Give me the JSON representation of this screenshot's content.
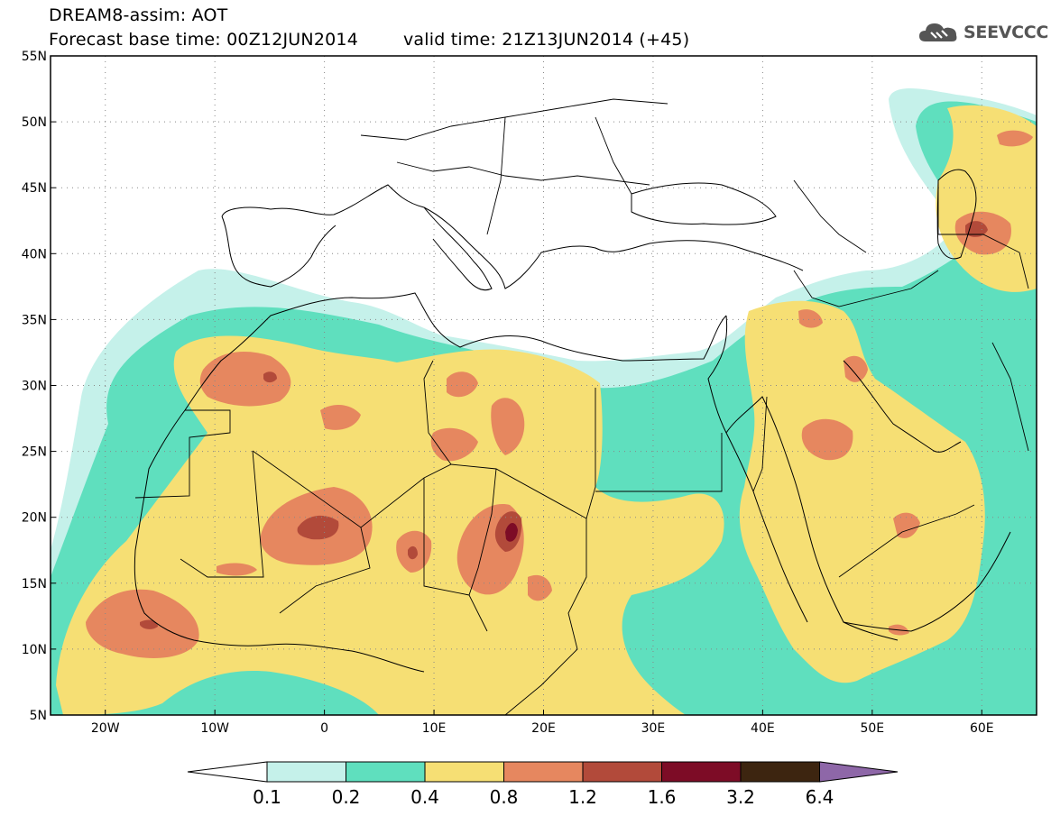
{
  "title": {
    "line1": "DREAM8-assim: AOT",
    "base_time_label": "Forecast base time: 00Z12JUN2014",
    "valid_time_label": "valid time: 21Z13JUN2014 (+45)"
  },
  "logo": {
    "text": "SEEVCCC",
    "icon": "cloud-icon"
  },
  "axes": {
    "lat_labels": [
      "55N",
      "50N",
      "45N",
      "40N",
      "35N",
      "30N",
      "25N",
      "20N",
      "15N",
      "10N",
      "5N"
    ],
    "lon_labels": [
      "20W",
      "10W",
      "0",
      "10E",
      "20E",
      "30E",
      "40E",
      "50E",
      "60E"
    ],
    "lat_range": [
      5,
      55
    ],
    "lon_range": [
      -25,
      65
    ],
    "grid": "dotted"
  },
  "colorbar": {
    "labels": [
      "0.1",
      "0.2",
      "0.4",
      "0.8",
      "1.2",
      "1.6",
      "3.2",
      "6.4"
    ],
    "colors": [
      "#ffffff",
      "#c5f1ea",
      "#5fdfbe",
      "#f6df74",
      "#e6875f",
      "#b24a3a",
      "#7d0c26",
      "#3d2510",
      "#8e67a8"
    ]
  },
  "colors": {
    "aot_0_1_0_2": "#c5f1ea",
    "aot_0_2_0_4": "#5fdfbe",
    "aot_0_4_0_8": "#f6df74",
    "aot_0_8_1_2": "#e6875f",
    "aot_1_2_1_6": "#b24a3a",
    "aot_1_6_3_2": "#7d0c26"
  }
}
